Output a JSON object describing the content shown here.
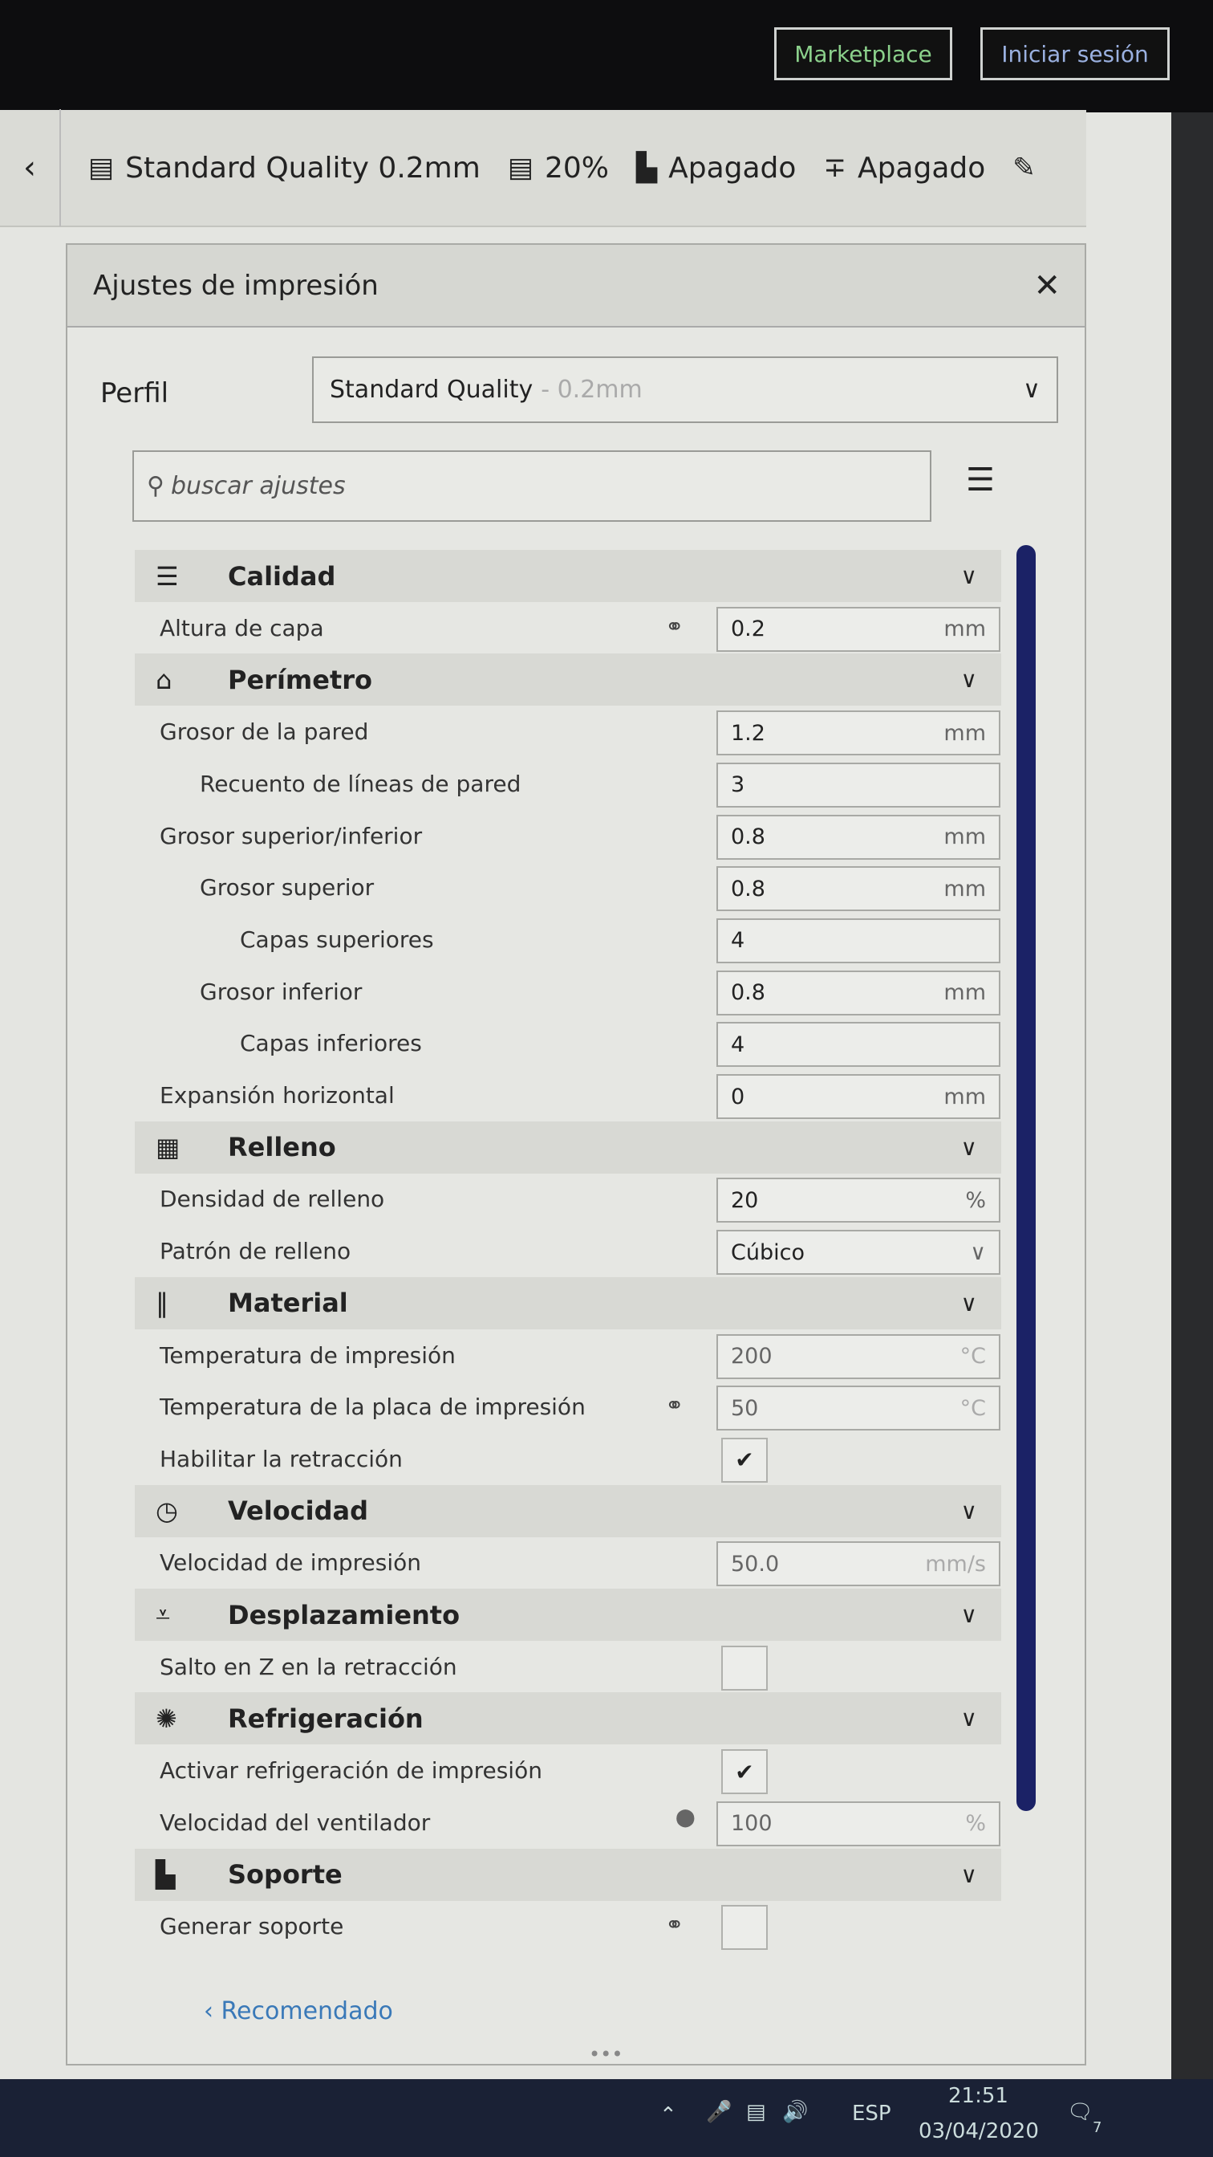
{
  "topbar": {
    "marketplace": "Marketplace",
    "login": "Iniciar sesión"
  },
  "toolbar": {
    "profile": "Standard Quality 0.2mm",
    "infill": "20%",
    "support": "Apagado",
    "adhesion": "Apagado",
    "icons": [
      "chevron-left-icon",
      "quality-icon",
      "infill-icon",
      "support-icon",
      "adhesion-icon",
      "pencil-icon"
    ]
  },
  "dialog": {
    "title": "Ajustes de impresión",
    "profile_label": "Perfil",
    "profile_value": "Standard Quality",
    "profile_sub": "- 0.2mm",
    "search_placeholder": "buscar ajustes",
    "recommended": "Recomendado",
    "sections": [
      {
        "title": "Calidad",
        "icon": "quality-icon",
        "rows": [
          {
            "label": "Altura de capa",
            "value": "0.2",
            "unit": "mm",
            "linked": true,
            "level": 0
          }
        ]
      },
      {
        "title": "Perímetro",
        "icon": "shell-icon",
        "rows": [
          {
            "label": "Grosor de la pared",
            "value": "1.2",
            "unit": "mm",
            "level": 0
          },
          {
            "label": "Recuento de líneas de pared",
            "value": "3",
            "unit": "",
            "level": 1
          },
          {
            "label": "Grosor superior/inferior",
            "value": "0.8",
            "unit": "mm",
            "level": 0
          },
          {
            "label": "Grosor superior",
            "value": "0.8",
            "unit": "mm",
            "level": 1
          },
          {
            "label": "Capas superiores",
            "value": "4",
            "unit": "",
            "level": 2
          },
          {
            "label": "Grosor inferior",
            "value": "0.8",
            "unit": "mm",
            "level": 1
          },
          {
            "label": "Capas inferiores",
            "value": "4",
            "unit": "",
            "level": 2
          },
          {
            "label": "Expansión horizontal",
            "value": "0",
            "unit": "mm",
            "level": 0
          }
        ]
      },
      {
        "title": "Relleno",
        "icon": "infill-icon",
        "rows": [
          {
            "label": "Densidad de relleno",
            "value": "20",
            "unit": "%",
            "level": 0
          },
          {
            "label": "Patrón de relleno",
            "value": "Cúbico",
            "unit": "",
            "dropdown": true,
            "level": 0
          }
        ]
      },
      {
        "title": "Material",
        "icon": "material-icon",
        "rows": [
          {
            "label": "Temperatura de impresión",
            "value": "200",
            "unit": "°C",
            "level": 0
          },
          {
            "label": "Temperatura de la placa de impresión",
            "value": "50",
            "unit": "°C",
            "linked": true,
            "level": 0
          },
          {
            "label": "Habilitar la retracción",
            "checkbox": true,
            "checked": true,
            "level": 0
          }
        ]
      },
      {
        "title": "Velocidad",
        "icon": "speed-icon",
        "rows": [
          {
            "label": "Velocidad de impresión",
            "value": "50.0",
            "unit": "mm/s",
            "level": 0
          }
        ]
      },
      {
        "title": "Desplazamiento",
        "icon": "travel-icon",
        "rows": [
          {
            "label": "Salto en Z en la retracción",
            "checkbox": true,
            "checked": false,
            "level": 0
          }
        ]
      },
      {
        "title": "Refrigeración",
        "icon": "fan-icon",
        "rows": [
          {
            "label": "Activar refrigeración de impresión",
            "checkbox": true,
            "checked": true,
            "level": 0
          },
          {
            "label": "Velocidad del ventilador",
            "value": "100",
            "unit": "%",
            "function": true,
            "level": 0
          }
        ]
      },
      {
        "title": "Soporte",
        "icon": "support-icon",
        "rows": [
          {
            "label": "Generar soporte",
            "checkbox": true,
            "checked": false,
            "linked": true,
            "level": 0
          }
        ]
      }
    ]
  },
  "taskbar": {
    "lang": "ESP",
    "time": "21:51",
    "date": "03/04/2020",
    "notifications": "7"
  },
  "colors": {
    "scrollbar": "#1b2266",
    "link": "#3a79b8",
    "taskbar": "#1a2135"
  }
}
